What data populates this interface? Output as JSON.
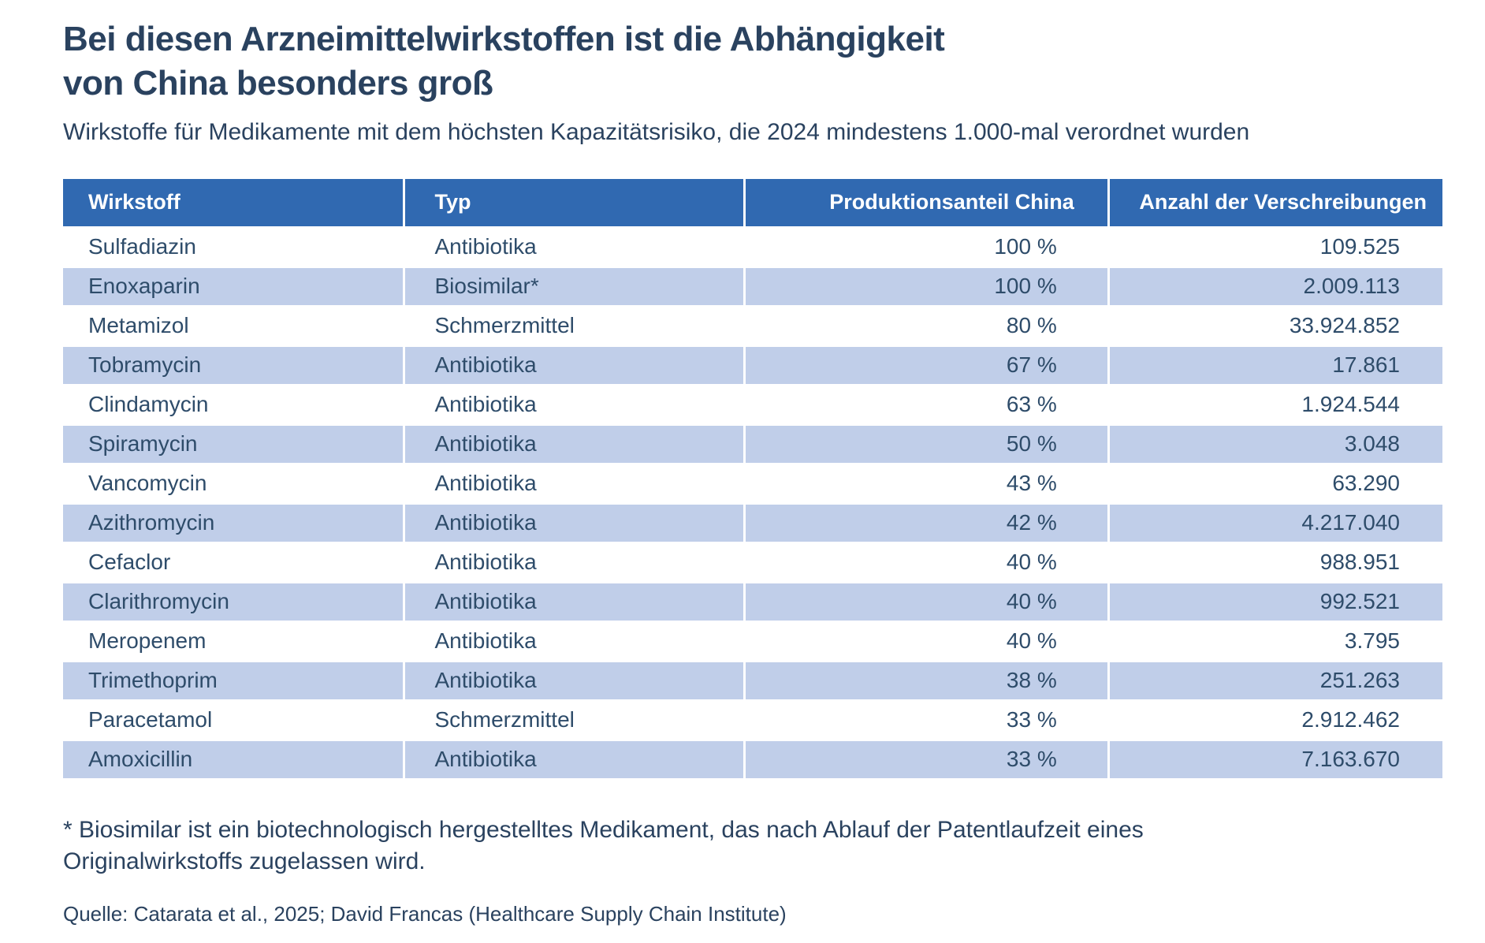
{
  "header": {
    "title_line1": "Bei diesen Arzneimittelwirkstoffen ist die Abhängigkeit",
    "title_line2": "von China besonders groß",
    "subtitle": "Wirkstoffe für Medikamente mit dem höchsten Kapazitätsrisiko, die 2024 mindestens 1.000-mal verordnet wurden"
  },
  "chart_data": {
    "type": "table",
    "title": "Bei diesen Arzneimittelwirkstoffen ist die Abhängigkeit von China besonders groß",
    "subtitle": "Wirkstoffe für Medikamente mit dem höchsten Kapazitätsrisiko, die 2024 mindestens 1.000-mal verordnet wurden",
    "columns": [
      "Wirkstoff",
      "Typ",
      "Produktionsanteil China",
      "Anzahl der Verschreibungen"
    ],
    "rows": [
      [
        "Sulfadiazin",
        "Antibiotika",
        "100 %",
        "109.525"
      ],
      [
        "Enoxaparin",
        "Biosimilar*",
        "100 %",
        "2.009.113"
      ],
      [
        "Metamizol",
        "Schmerzmittel",
        "80 %",
        "33.924.852"
      ],
      [
        "Tobramycin",
        "Antibiotika",
        "67 %",
        "17.861"
      ],
      [
        "Clindamycin",
        "Antibiotika",
        "63 %",
        "1.924.544"
      ],
      [
        "Spiramycin",
        "Antibiotika",
        "50 %",
        "3.048"
      ],
      [
        "Vancomycin",
        "Antibiotika",
        "43 %",
        "63.290"
      ],
      [
        "Azithromycin",
        "Antibiotika",
        "42 %",
        "4.217.040"
      ],
      [
        "Cefaclor",
        "Antibiotika",
        "40 %",
        "988.951"
      ],
      [
        "Clarithromycin",
        "Antibiotika",
        "40 %",
        "992.521"
      ],
      [
        "Meropenem",
        "Antibiotika",
        "40 %",
        "3.795"
      ],
      [
        "Trimethoprim",
        "Antibiotika",
        "38 %",
        "251.263"
      ],
      [
        "Paracetamol",
        "Schmerzmittel",
        "33 %",
        "2.912.462"
      ],
      [
        "Amoxicillin",
        "Antibiotika",
        "33 %",
        "7.163.670"
      ]
    ],
    "layout_hints": {
      "row_striping": "alternating white and light blue",
      "value_columns_alignment": "right"
    }
  },
  "footnote": {
    "line1": "* Biosimilar ist ein biotechnologisch hergestelltes Medikament, das nach Ablauf der Patentlaufzeit eines",
    "line2": "Originalwirkstoffs zugelassen wird."
  },
  "source": "Quelle: Catarata et al., 2025; David Francas (Healthcare Supply Chain Institute)",
  "colors": {
    "header_bg": "#3069B1",
    "header_text": "#FFFFFF",
    "row_bg": "#FFFFFF",
    "row_alt_bg": "#C0CEE9",
    "body_text": "#2E4C6A",
    "title_text": "#2A425F",
    "page_bg": "#FFFFFF"
  }
}
